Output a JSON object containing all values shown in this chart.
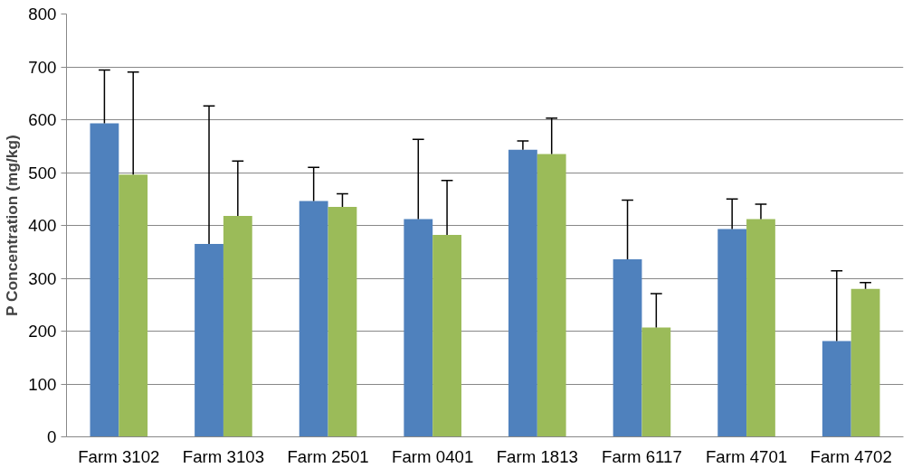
{
  "chart_data": {
    "type": "bar",
    "ylabel": "P Concentration (mg/kg)",
    "categories": [
      "Farm 3102",
      "Farm 3103",
      "Farm 2501",
      "Farm 0401",
      "Farm 1813",
      "Farm 6117",
      "Farm 4701",
      "Farm 4702"
    ],
    "series": [
      {
        "color": "#4f81bd",
        "values": [
          593,
          365,
          446,
          412,
          543,
          336,
          393,
          181
        ],
        "errors": [
          [
            593,
            694
          ],
          [
            365,
            626
          ],
          [
            446,
            510
          ],
          [
            412,
            563
          ],
          [
            543,
            560
          ],
          [
            336,
            448
          ],
          [
            393,
            450
          ],
          [
            181,
            314
          ]
        ]
      },
      {
        "color": "#9bbb59",
        "values": [
          496,
          418,
          435,
          382,
          535,
          207,
          412,
          280
        ],
        "errors": [
          [
            496,
            690
          ],
          [
            418,
            522
          ],
          [
            435,
            460
          ],
          [
            382,
            485
          ],
          [
            535,
            603
          ],
          [
            207,
            271
          ],
          [
            412,
            440
          ],
          [
            280,
            292
          ]
        ]
      }
    ],
    "ylim": [
      0,
      800
    ],
    "yticks": [
      0,
      100,
      200,
      300,
      400,
      500,
      600,
      700,
      800
    ],
    "grid": "y"
  }
}
